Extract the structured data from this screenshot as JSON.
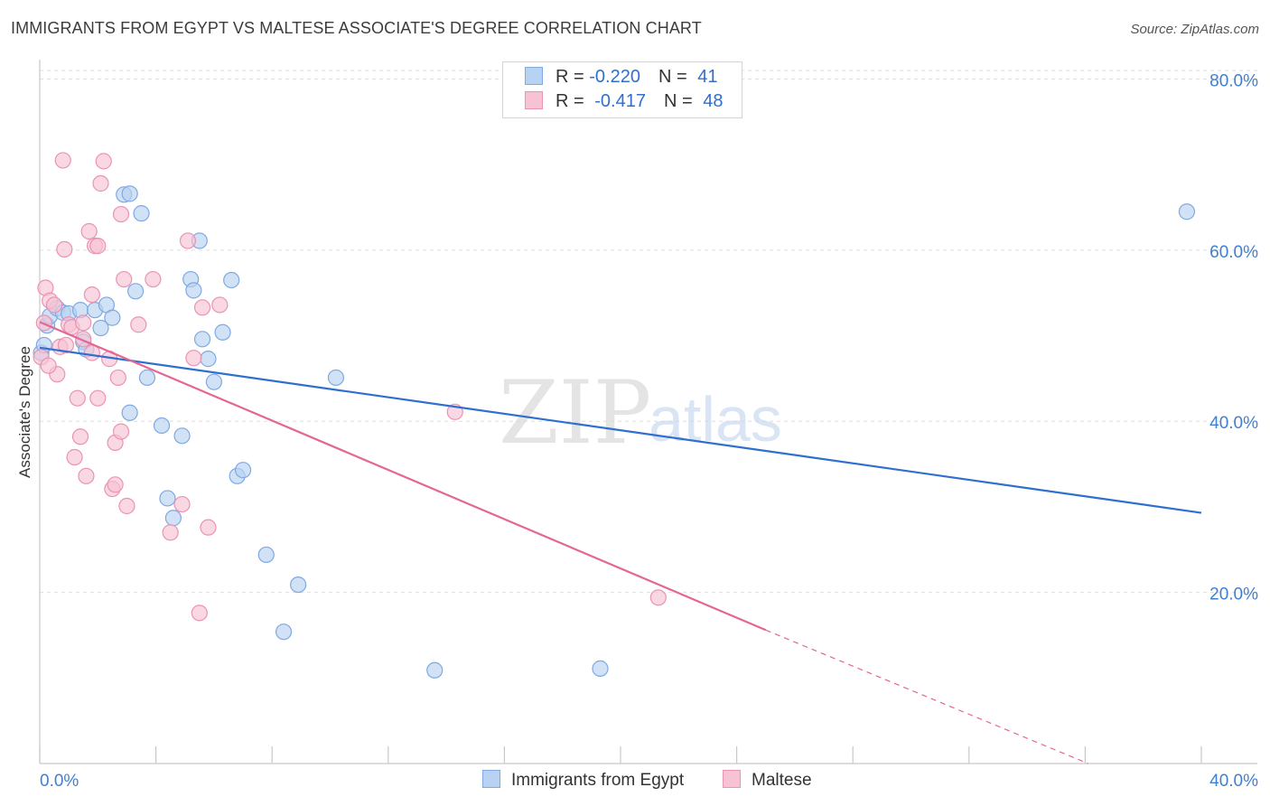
{
  "header": {
    "title": "IMMIGRANTS FROM EGYPT VS MALTESE ASSOCIATE'S DEGREE CORRELATION CHART",
    "source": "Source: ZipAtlas.com"
  },
  "watermark": {
    "zip": "ZIP",
    "atlas": "atlas"
  },
  "legend_top": {
    "rows": [
      {
        "r_label": "R = ",
        "r_value": "-0.220",
        "n_label": "N = ",
        "n_value": "41"
      },
      {
        "r_label": "R = ",
        "r_value": "-0.417",
        "n_label": "N = ",
        "n_value": "48"
      }
    ]
  },
  "legend_bottom": {
    "egypt": "Immigrants from Egypt",
    "maltese": "Maltese"
  },
  "colors": {
    "egypt_fill": "#b8d2f3",
    "egypt_stroke": "#7fa9e0",
    "egypt_line": "#2f6fd0",
    "maltese_fill": "#f7c3d4",
    "maltese_stroke": "#ea93b2",
    "maltese_line": "#e36694",
    "axis_text": "#3f7fd4",
    "grid": "#dedede"
  },
  "chart_data": {
    "type": "scatter",
    "title": "IMMIGRANTS FROM EGYPT VS MALTESE ASSOCIATE'S DEGREE CORRELATION CHART",
    "xlabel": "",
    "ylabel": "Associate's Degree",
    "xlim": [
      0,
      40
    ],
    "ylim": [
      0,
      81
    ],
    "x_tick_labels": [
      "0.0%",
      "40.0%"
    ],
    "y_ticks": [
      20,
      40,
      60,
      80
    ],
    "y_tick_labels": [
      "20.0%",
      "40.0%",
      "60.0%",
      "80.0%"
    ],
    "grid": true,
    "legend_placement": "bottom",
    "series": [
      {
        "name": "Immigrants from Egypt",
        "points": [
          [
            0.05,
            48.0
          ],
          [
            0.15,
            48.9
          ],
          [
            0.25,
            51.2
          ],
          [
            0.35,
            52.3
          ],
          [
            0.6,
            53.2
          ],
          [
            0.8,
            52.7
          ],
          [
            1.0,
            52.6
          ],
          [
            1.4,
            53.0
          ],
          [
            1.5,
            49.3
          ],
          [
            1.6,
            48.4
          ],
          [
            1.9,
            53.0
          ],
          [
            2.1,
            50.9
          ],
          [
            2.3,
            53.6
          ],
          [
            2.5,
            52.1
          ],
          [
            2.9,
            66.5
          ],
          [
            3.1,
            66.6
          ],
          [
            3.3,
            55.2
          ],
          [
            3.5,
            64.3
          ],
          [
            3.7,
            45.1
          ],
          [
            3.1,
            41.0
          ],
          [
            4.2,
            39.5
          ],
          [
            4.4,
            31.0
          ],
          [
            4.6,
            28.7
          ],
          [
            4.9,
            38.3
          ],
          [
            5.2,
            56.6
          ],
          [
            5.3,
            55.3
          ],
          [
            5.5,
            61.1
          ],
          [
            5.6,
            49.6
          ],
          [
            5.8,
            47.3
          ],
          [
            6.0,
            44.6
          ],
          [
            6.3,
            50.4
          ],
          [
            6.6,
            56.5
          ],
          [
            6.8,
            33.6
          ],
          [
            7.0,
            34.3
          ],
          [
            7.8,
            24.4
          ],
          [
            8.9,
            20.9
          ],
          [
            8.4,
            15.4
          ],
          [
            10.2,
            45.1
          ],
          [
            13.6,
            10.9
          ],
          [
            19.3,
            11.1
          ],
          [
            39.5,
            64.5
          ]
        ],
        "trend": {
          "x": [
            0.0,
            40.0
          ],
          "y": [
            48.6,
            29.3
          ]
        }
      },
      {
        "name": "Maltese",
        "points": [
          [
            0.05,
            47.5
          ],
          [
            0.15,
            51.5
          ],
          [
            0.2,
            55.6
          ],
          [
            0.35,
            54.1
          ],
          [
            0.5,
            53.6
          ],
          [
            0.6,
            45.5
          ],
          [
            0.7,
            48.7
          ],
          [
            0.8,
            70.5
          ],
          [
            0.85,
            60.1
          ],
          [
            1.0,
            51.3
          ],
          [
            1.1,
            51.0
          ],
          [
            1.2,
            35.8
          ],
          [
            1.3,
            42.7
          ],
          [
            1.4,
            38.2
          ],
          [
            1.5,
            51.5
          ],
          [
            1.6,
            33.6
          ],
          [
            1.7,
            62.2
          ],
          [
            1.8,
            54.8
          ],
          [
            1.9,
            60.5
          ],
          [
            2.0,
            60.5
          ],
          [
            2.0,
            42.7
          ],
          [
            2.1,
            67.8
          ],
          [
            2.2,
            70.4
          ],
          [
            2.4,
            47.3
          ],
          [
            2.5,
            32.1
          ],
          [
            2.6,
            32.6
          ],
          [
            2.6,
            37.5
          ],
          [
            2.7,
            45.1
          ],
          [
            2.8,
            38.8
          ],
          [
            2.8,
            64.2
          ],
          [
            2.9,
            56.6
          ],
          [
            3.0,
            30.1
          ],
          [
            3.4,
            51.3
          ],
          [
            3.9,
            56.6
          ],
          [
            4.5,
            27.0
          ],
          [
            4.9,
            30.3
          ],
          [
            5.1,
            61.1
          ],
          [
            5.3,
            47.4
          ],
          [
            5.5,
            17.6
          ],
          [
            5.6,
            53.3
          ],
          [
            5.8,
            27.6
          ],
          [
            6.2,
            53.6
          ],
          [
            0.9,
            48.9
          ],
          [
            1.8,
            48.0
          ],
          [
            14.3,
            41.1
          ],
          [
            21.3,
            19.4
          ],
          [
            0.3,
            46.5
          ],
          [
            1.5,
            49.6
          ]
        ],
        "trend": {
          "x": [
            0.0,
            25.0
          ],
          "y": [
            51.6,
            15.6
          ]
        },
        "trend_dashed_extension": {
          "x": [
            25.0,
            36.1
          ],
          "y": [
            15.6,
            0.0
          ]
        }
      }
    ]
  }
}
